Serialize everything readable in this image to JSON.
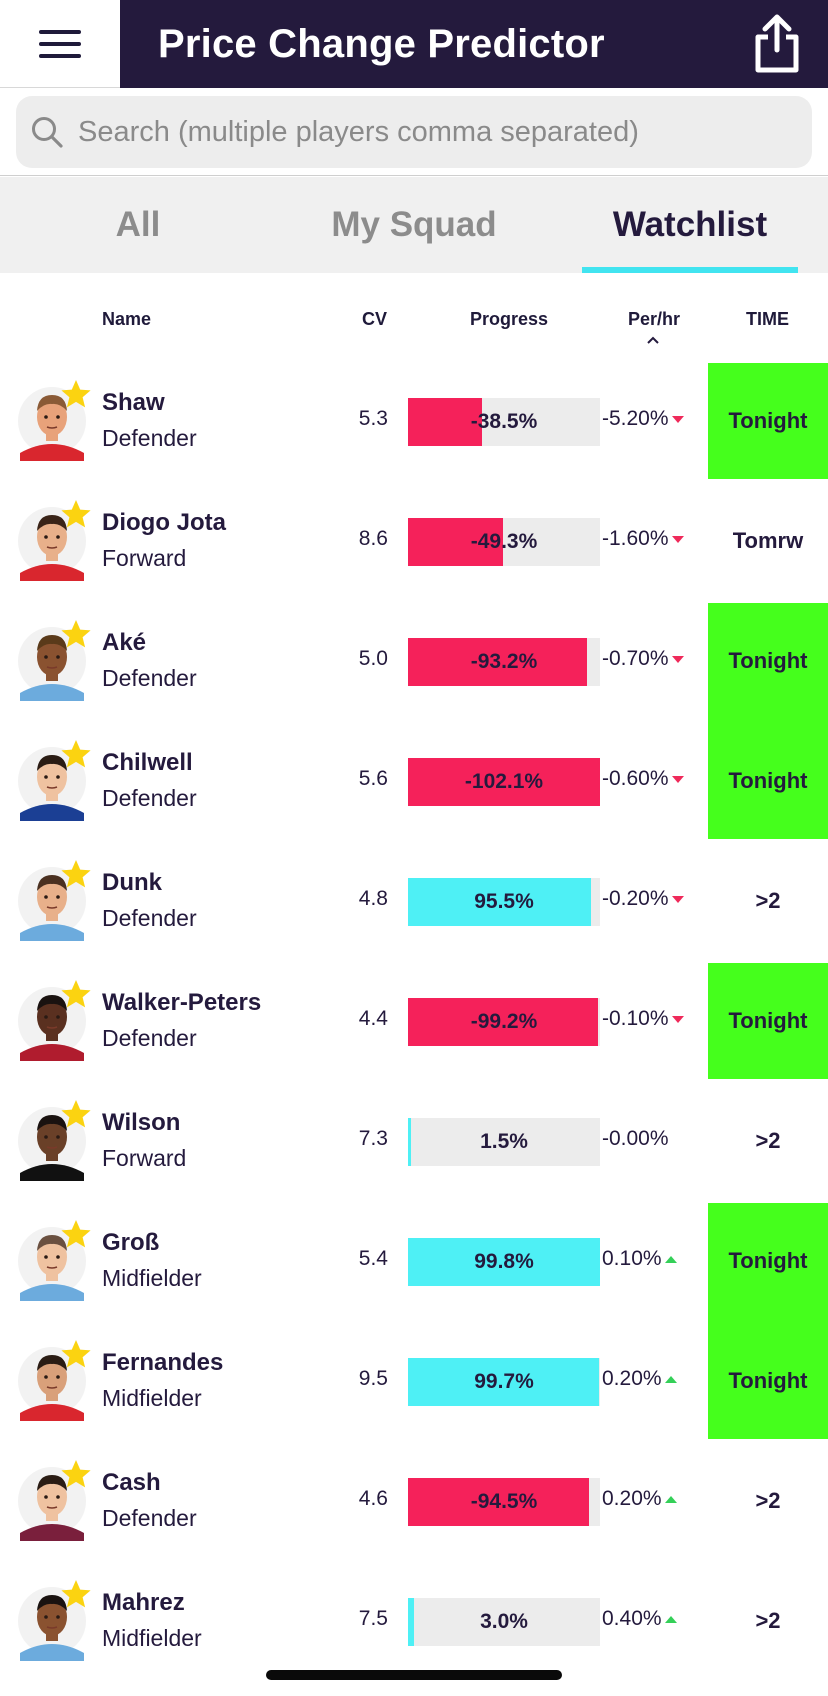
{
  "header": {
    "title": "Price Change Predictor",
    "menu_icon": "hamburger-icon",
    "share_icon": "share-icon"
  },
  "search": {
    "placeholder": "Search (multiple players comma separated)",
    "value": ""
  },
  "tabs": [
    {
      "label": "All",
      "active": false
    },
    {
      "label": "My Squad",
      "active": false
    },
    {
      "label": "Watchlist",
      "active": true
    }
  ],
  "columns": {
    "name": "Name",
    "cv": "CV",
    "progress": "Progress",
    "per_hr": "Per/hr",
    "time": "TIME"
  },
  "colors": {
    "header_bg": "#241a3d",
    "fall": "#f5215a",
    "rise": "#4ef0f5",
    "tonight": "#45ff1c",
    "bar_bg": "#ececec",
    "tab_underline": "#41e4f0"
  },
  "players": [
    {
      "name": "Shaw",
      "position": "Defender",
      "cv": "5.3",
      "progress_label": "-38.5%",
      "progress": -38.5,
      "per_hr": "-5.20%",
      "trend": "down",
      "time": "Tonight",
      "highlight": true,
      "kit": "#d9262e",
      "skin": "#e8a27a",
      "hair": "#8a5a36"
    },
    {
      "name": "Diogo Jota",
      "position": "Forward",
      "cv": "8.6",
      "progress_label": "-49.3%",
      "progress": -49.3,
      "per_hr": "-1.60%",
      "trend": "down",
      "time": "Tomrw",
      "highlight": false,
      "kit": "#d9262e",
      "skin": "#e8b08a",
      "hair": "#3a2418"
    },
    {
      "name": "Aké",
      "position": "Defender",
      "cv": "5.0",
      "progress_label": "-93.2%",
      "progress": -93.2,
      "per_hr": "-0.70%",
      "trend": "down",
      "time": "Tonight",
      "highlight": true,
      "kit": "#6cabdd",
      "skin": "#8a5230",
      "hair": "#5a3a1a"
    },
    {
      "name": "Chilwell",
      "position": "Defender",
      "cv": "5.6",
      "progress_label": "-102.1%",
      "progress": -102.1,
      "per_hr": "-0.60%",
      "trend": "down",
      "time": "Tonight",
      "highlight": true,
      "kit": "#1b3f94",
      "skin": "#efc2a0",
      "hair": "#2a1c14"
    },
    {
      "name": "Dunk",
      "position": "Defender",
      "cv": "4.8",
      "progress_label": "95.5%",
      "progress": 95.5,
      "per_hr": "-0.20%",
      "trend": "down",
      "time": ">2",
      "highlight": false,
      "kit": "#6cabdd",
      "skin": "#e8b08a",
      "hair": "#4a3020"
    },
    {
      "name": "Walker-Peters",
      "position": "Defender",
      "cv": "4.4",
      "progress_label": "-99.2%",
      "progress": -99.2,
      "per_hr": "-0.10%",
      "trend": "down",
      "time": "Tonight",
      "highlight": true,
      "kit": "#b01c2e",
      "skin": "#5a3020",
      "hair": "#1a1210"
    },
    {
      "name": "Wilson",
      "position": "Forward",
      "cv": "7.3",
      "progress_label": "1.5%",
      "progress": 1.5,
      "per_hr": "-0.00%",
      "trend": "none",
      "time": ">2",
      "highlight": false,
      "kit": "#111111",
      "skin": "#6a4028",
      "hair": "#1a1210"
    },
    {
      "name": "Groß",
      "position": "Midfielder",
      "cv": "5.4",
      "progress_label": "99.8%",
      "progress": 99.8,
      "per_hr": "0.10%",
      "trend": "up",
      "time": "Tonight",
      "highlight": true,
      "kit": "#6cabdd",
      "skin": "#efc2a0",
      "hair": "#6a5040"
    },
    {
      "name": "Fernandes",
      "position": "Midfielder",
      "cv": "9.5",
      "progress_label": "99.7%",
      "progress": 99.7,
      "per_hr": "0.20%",
      "trend": "up",
      "time": "Tonight",
      "highlight": true,
      "kit": "#d9262e",
      "skin": "#d9a07a",
      "hair": "#2a1c14"
    },
    {
      "name": "Cash",
      "position": "Defender",
      "cv": "4.6",
      "progress_label": "-94.5%",
      "progress": -94.5,
      "per_hr": "0.20%",
      "trend": "up",
      "time": ">2",
      "highlight": false,
      "kit": "#7a1f3c",
      "skin": "#efc2a0",
      "hair": "#2a1c14"
    },
    {
      "name": "Mahrez",
      "position": "Midfielder",
      "cv": "7.5",
      "progress_label": "3.0%",
      "progress": 3.0,
      "per_hr": "0.40%",
      "trend": "up",
      "time": ">2",
      "highlight": false,
      "kit": "#6cabdd",
      "skin": "#8a5230",
      "hair": "#1a1210"
    }
  ]
}
